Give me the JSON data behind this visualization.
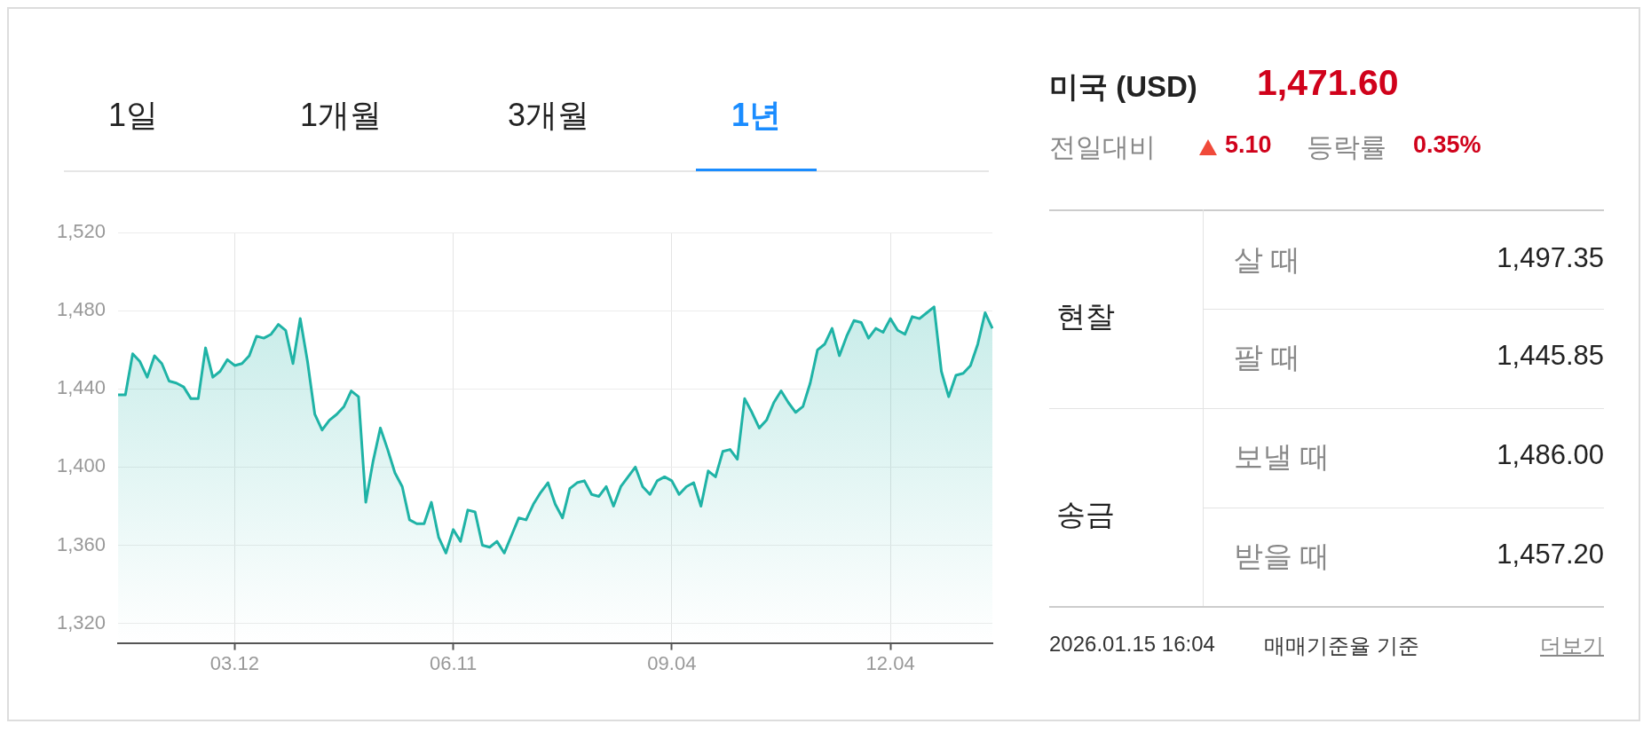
{
  "chart_data": [
    {
      "type": "area",
      "annotations": [
        "1일",
        "1개월",
        "3개월",
        "1년"
      ],
      "categories": [
        null,
        null,
        null,
        null,
        null,
        null,
        null,
        null,
        null,
        null,
        null,
        null,
        null,
        null,
        null,
        null,
        "03.12",
        null,
        null,
        null,
        null,
        null,
        null,
        null,
        null,
        null,
        null,
        null,
        null,
        null,
        null,
        null,
        null,
        null,
        null,
        null,
        null,
        null,
        null,
        null,
        null,
        null,
        null,
        null,
        null,
        null,
        "06.11",
        null,
        null,
        null,
        null,
        null,
        null,
        null,
        null,
        null,
        null,
        null,
        null,
        null,
        null,
        null,
        null,
        null,
        null,
        null,
        null,
        null,
        null,
        null,
        null,
        null,
        null,
        null,
        null,
        null,
        "09.04",
        null,
        null,
        null,
        null,
        null,
        null,
        null,
        null,
        null,
        null,
        null,
        null,
        null,
        null,
        null,
        null,
        null,
        null,
        null,
        null,
        null,
        null,
        null,
        null,
        null,
        null,
        null,
        null,
        null,
        "12.04",
        null,
        null,
        null,
        null,
        null,
        null,
        null,
        null,
        null,
        null,
        null,
        null,
        null,
        null
      ],
      "series": [
        {
          "color": "#1fb3a6",
          "values": [
            1437,
            1437,
            1458,
            1454,
            1446,
            1457,
            1453,
            1444,
            1443,
            1441,
            1435,
            1435,
            1461,
            1446,
            1449,
            1455,
            1452,
            1453,
            1457,
            1467,
            1466,
            1468,
            1473,
            1470,
            1453,
            1476,
            1454,
            1427,
            1419,
            1424,
            1427,
            1431,
            1439,
            1436,
            1382,
            1403,
            1420,
            1409,
            1397,
            1390,
            1373,
            1371,
            1371,
            1382,
            1364,
            1356,
            1368,
            1362,
            1378,
            1377,
            1360,
            1359,
            1362,
            1356,
            1365,
            1374,
            1373,
            1381,
            1387,
            1392,
            1381,
            1374,
            1389,
            1392,
            1393,
            1386,
            1385,
            1390,
            1380,
            1390,
            1395,
            1400,
            1390,
            1386,
            1393,
            1395,
            1393,
            1386,
            1390,
            1392,
            1380,
            1398,
            1395,
            1408,
            1409,
            1404,
            1435,
            1428,
            1420,
            1424,
            1433,
            1439,
            1433,
            1428,
            1431,
            1443,
            1460,
            1463,
            1471,
            1457,
            1467,
            1475,
            1474,
            1466,
            1471,
            1469,
            1476,
            1470,
            1468,
            1477,
            1476,
            1479,
            1482,
            1449,
            1436,
            1447,
            1448,
            1452,
            1463,
            1479,
            1471
          ]
        }
      ],
      "ylim": [
        1310,
        1520
      ],
      "yticks": [
        {
          "value": 1320,
          "label": "1,320"
        },
        {
          "value": 1360,
          "label": "1,360"
        },
        {
          "value": 1400,
          "label": "1,400"
        },
        {
          "value": 1440,
          "label": "1,440"
        },
        {
          "value": 1480,
          "label": "1,480"
        },
        {
          "value": 1520,
          "label": "1,520"
        }
      ],
      "grid": true
    },
    {
      "type": "other",
      "title": "미국 (USD)",
      "subtitle": "1,471.60",
      "annotations": [
        "전일대비",
        "5.10",
        "등락률",
        "0.35%",
        "현찰",
        "살 때",
        "1,497.35",
        "팔 때",
        "1,445.85",
        "송금",
        "보낼 때",
        "1,486.00",
        "받을 때",
        "1,457.20",
        "2026.01.15 16:04",
        "매매기준율 기준",
        "더보기"
      ]
    }
  ]
}
